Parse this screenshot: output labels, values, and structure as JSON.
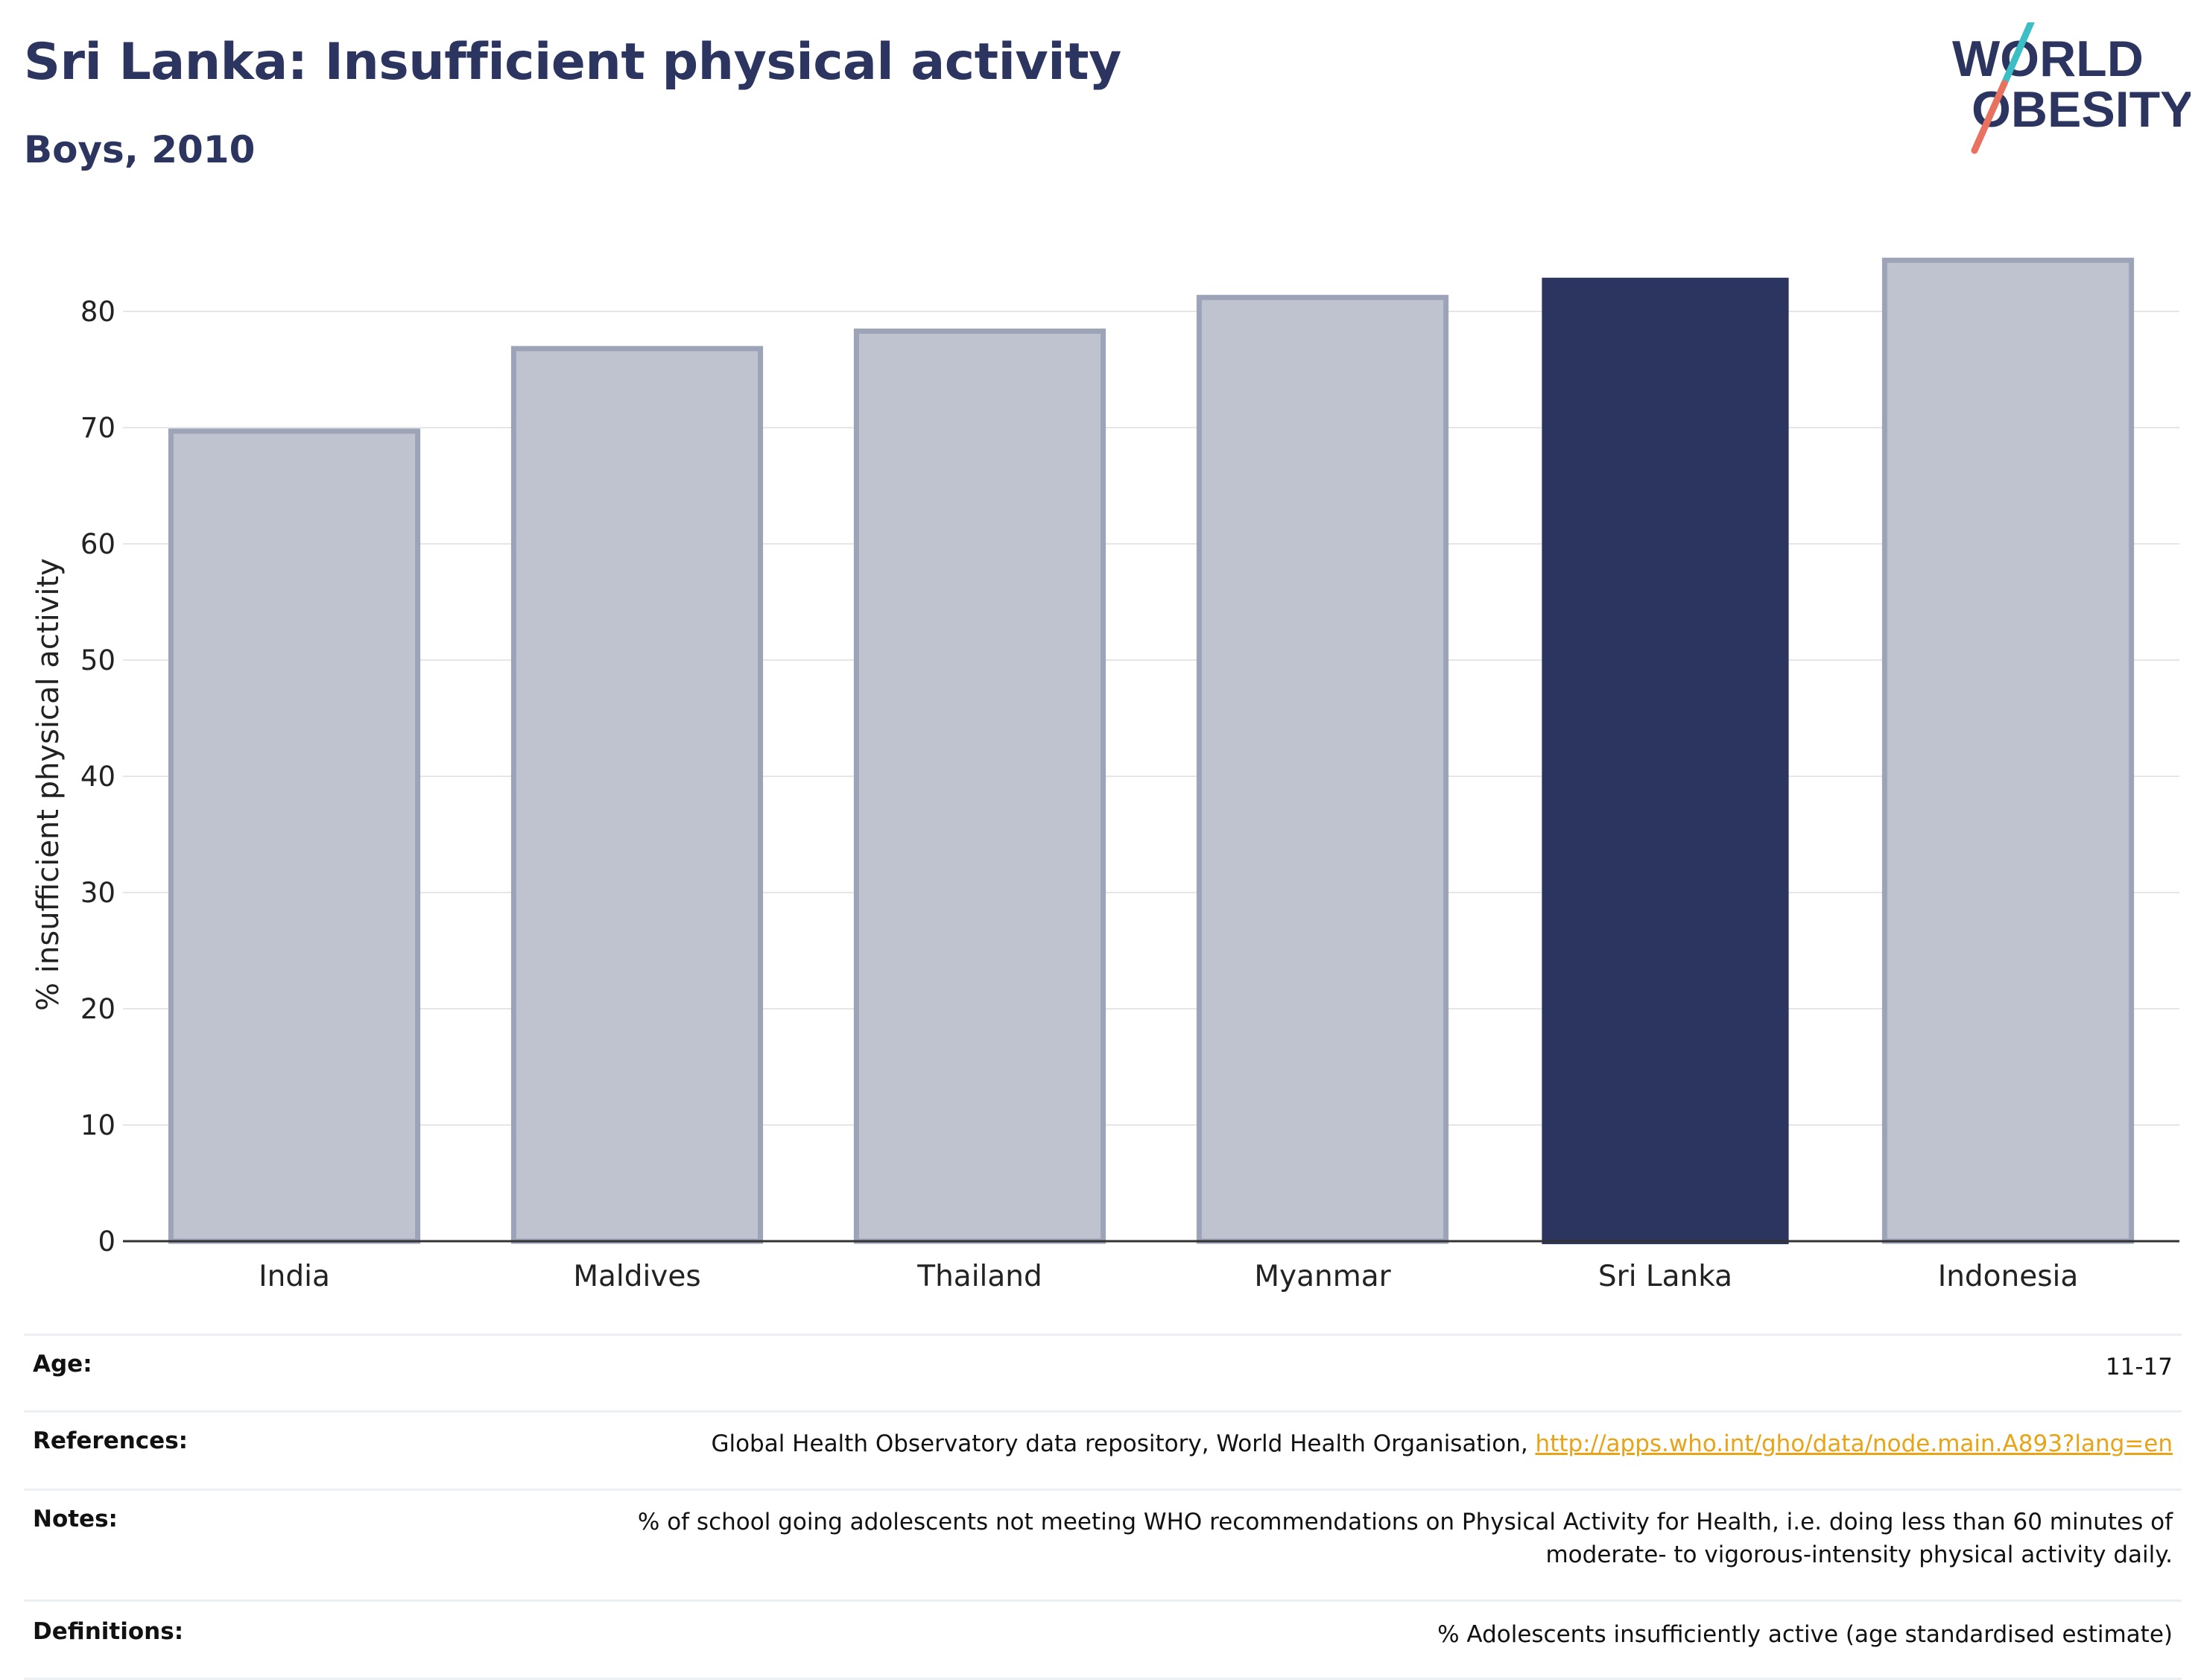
{
  "header": {
    "title": "Sri Lanka: Insufficient physical activity",
    "subtitle": "Boys, 2010"
  },
  "logo": {
    "text_line1": "WORLD",
    "text_line2": "OBESITY",
    "colors": {
      "text": "#2b3560",
      "slash_top": "#3bbfc4",
      "slash_bottom": "#e8725f"
    }
  },
  "chart_data": {
    "type": "bar",
    "categories": [
      "India",
      "Maldives",
      "Thailand",
      "Myanmar",
      "Sri Lanka",
      "Indonesia"
    ],
    "values": [
      69.7,
      76.8,
      78.3,
      81.2,
      82.9,
      84.4
    ],
    "highlight": "Sri Lanka",
    "ylabel": "% insufficient physical activity",
    "xlabel": "",
    "ylim": [
      0,
      85
    ],
    "yticks": [
      0,
      10,
      20,
      30,
      40,
      50,
      60,
      70,
      80
    ],
    "grid": true,
    "colors": {
      "bar": "#bfc3cf",
      "bar_border": "#9ea4b8",
      "highlight": "#2b3560",
      "grid": "#e6e6e6",
      "axis": "#333333"
    }
  },
  "meta": {
    "age": {
      "label": "Age:",
      "value": "11-17"
    },
    "references": {
      "label": "References:",
      "value": "Global Health Observatory data repository, World Health Organisation,",
      "link": "http://apps.who.int/gho/data/node.main.A893?lang=en"
    },
    "notes": {
      "label": "Notes:",
      "value_line1": "% of school going adolescents not meeting WHO recommendations on Physical Activity for Health, i.e. doing less than 60 minutes of",
      "value_line2": "moderate- to vigorous-intensity physical activity daily."
    },
    "definitions": {
      "label": "Definitions:",
      "value": "% Adolescents insufficiently active (age standardised estimate)"
    }
  }
}
